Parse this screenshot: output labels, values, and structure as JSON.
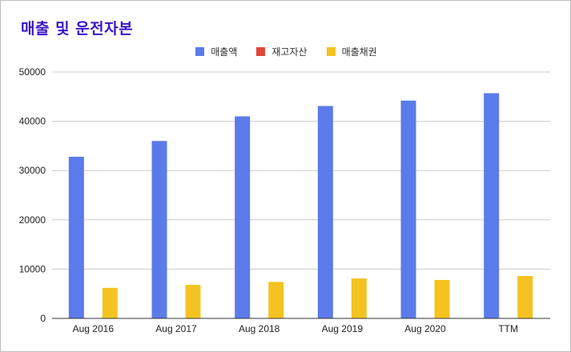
{
  "chart_data": {
    "type": "bar",
    "title": "매출 및 운전자본",
    "categories": [
      "Aug 2016",
      "Aug 2017",
      "Aug 2018",
      "Aug 2019",
      "Aug 2020",
      "TTM"
    ],
    "series": [
      {
        "name": "매출액",
        "color": "#5b7bea",
        "values": [
          32800,
          36000,
          41000,
          43100,
          44200,
          45700
        ]
      },
      {
        "name": "재고자산",
        "color": "#e0483a",
        "values": [
          0,
          0,
          0,
          0,
          0,
          0
        ]
      },
      {
        "name": "매출채권",
        "color": "#f4c321",
        "values": [
          6200,
          6800,
          7400,
          8100,
          7800,
          8600
        ]
      }
    ],
    "ylim": [
      0,
      50000
    ],
    "yticks": [
      "0",
      "10000",
      "20000",
      "30000",
      "40000",
      "50000"
    ],
    "grid": true,
    "legend_position": "top-center",
    "xlabel": "",
    "ylabel": ""
  }
}
